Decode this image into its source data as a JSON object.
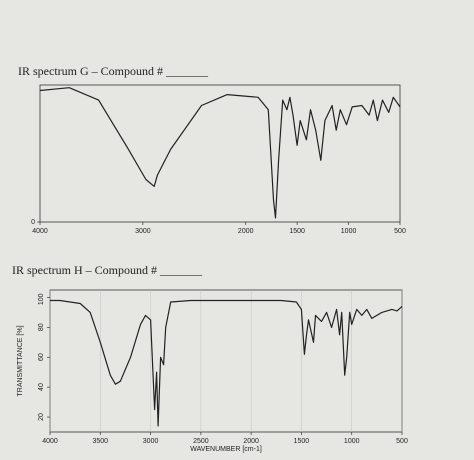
{
  "chart_data": [
    {
      "type": "line",
      "title": "IR spectrum G – Compound # _______",
      "x": [
        4000,
        3715,
        3430,
        3140,
        2970,
        2890,
        2860,
        2730,
        2430,
        2180,
        1880,
        1780,
        1730,
        1710,
        1680,
        1640,
        1600,
        1570,
        1540,
        1500,
        1470,
        1410,
        1370,
        1320,
        1270,
        1230,
        1160,
        1120,
        1080,
        1020,
        965,
        870,
        800,
        760,
        720,
        670,
        610,
        565,
        500
      ],
      "series": [
        {
          "name": "G",
          "color": "#222222",
          "values": [
            96,
            98,
            89,
            53,
            31,
            26,
            34,
            53,
            85,
            93,
            91,
            82,
            16,
            3,
            45,
            89,
            82,
            91,
            78,
            56,
            74,
            60,
            82,
            67,
            45,
            74,
            85,
            67,
            82,
            71,
            84,
            85,
            78,
            89,
            74,
            89,
            80,
            91,
            84
          ]
        }
      ],
      "xlim": [
        4000,
        500
      ],
      "xticks": [
        4000,
        3000,
        2000,
        1500,
        1000,
        500
      ],
      "ylim": [
        0,
        100
      ],
      "yticks": [
        0
      ]
    },
    {
      "type": "line",
      "title": "IR spectrum H – Compound # _______",
      "x_label": "WAVENUMBER [cm-1]",
      "y_label": "TRANSMITTANCE [%]",
      "x": [
        4000,
        3900,
        3800,
        3700,
        3600,
        3500,
        3400,
        3350,
        3300,
        3200,
        3100,
        3050,
        3000,
        2960,
        2940,
        2925,
        2900,
        2870,
        2850,
        2800,
        2600,
        2400,
        2000,
        1700,
        1550,
        1500,
        1470,
        1450,
        1430,
        1380,
        1360,
        1300,
        1250,
        1200,
        1150,
        1120,
        1100,
        1070,
        1050,
        1020,
        1000,
        950,
        900,
        850,
        800,
        700,
        600,
        550,
        500
      ],
      "series": [
        {
          "name": "H",
          "color": "#222222",
          "values": [
            98,
            98,
            97,
            96,
            90,
            70,
            48,
            42,
            44,
            60,
            82,
            88,
            85,
            25,
            50,
            14,
            60,
            55,
            80,
            97,
            98,
            98,
            98,
            98,
            97,
            92,
            62,
            75,
            85,
            70,
            88,
            84,
            90,
            80,
            92,
            75,
            90,
            48,
            60,
            90,
            82,
            92,
            88,
            92,
            86,
            90,
            92,
            91,
            94
          ]
        }
      ],
      "xlim": [
        4000,
        500
      ],
      "xticks": [
        4000,
        3500,
        3000,
        2500,
        2000,
        1500,
        1000,
        500
      ],
      "ylim": [
        10,
        105
      ],
      "yticks": [
        20,
        40,
        60,
        80,
        100
      ]
    }
  ]
}
